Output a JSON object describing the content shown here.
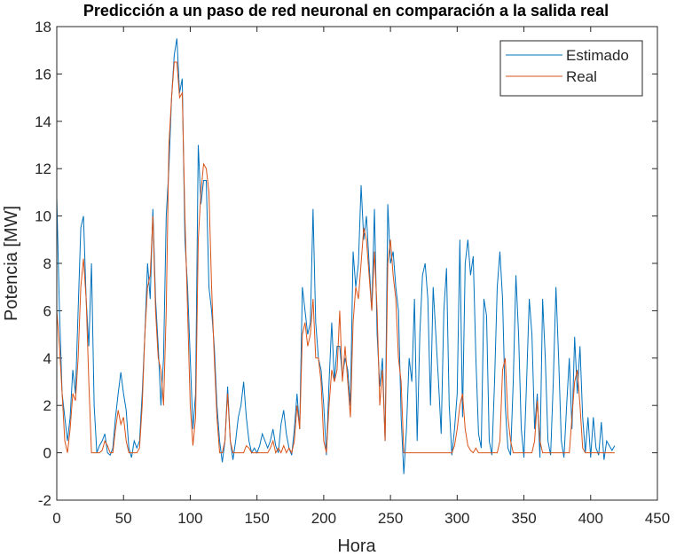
{
  "chart_data": {
    "type": "line",
    "title": "Predicción a un paso de red neuronal en comparación a la salida real",
    "xlabel": "Hora",
    "ylabel": "Potencia [MW]",
    "x": [
      0,
      2,
      4,
      6,
      8,
      10,
      12,
      14,
      16,
      18,
      20,
      22,
      24,
      26,
      28,
      30,
      32,
      34,
      36,
      38,
      40,
      42,
      44,
      46,
      48,
      50,
      52,
      54,
      56,
      58,
      60,
      62,
      64,
      66,
      68,
      70,
      72,
      74,
      76,
      78,
      80,
      82,
      84,
      86,
      88,
      90,
      92,
      94,
      96,
      98,
      100,
      102,
      104,
      106,
      108,
      110,
      112,
      114,
      116,
      118,
      120,
      122,
      124,
      126,
      128,
      130,
      132,
      134,
      136,
      138,
      140,
      142,
      144,
      146,
      148,
      150,
      152,
      154,
      156,
      158,
      160,
      162,
      164,
      166,
      168,
      170,
      172,
      174,
      176,
      178,
      180,
      182,
      184,
      186,
      188,
      190,
      192,
      194,
      196,
      198,
      200,
      202,
      204,
      206,
      208,
      210,
      212,
      214,
      216,
      218,
      220,
      222,
      224,
      226,
      228,
      230,
      232,
      234,
      236,
      238,
      240,
      242,
      244,
      246,
      248,
      250,
      252,
      254,
      256,
      258,
      260,
      262,
      264,
      266,
      268,
      270,
      272,
      274,
      276,
      278,
      280,
      282,
      284,
      286,
      288,
      290,
      292,
      294,
      296,
      298,
      300,
      302,
      304,
      306,
      308,
      310,
      312,
      314,
      316,
      318,
      320,
      322,
      324,
      326,
      328,
      330,
      332,
      334,
      336,
      338,
      340,
      342,
      344,
      346,
      348,
      350,
      352,
      354,
      356,
      358,
      360,
      362,
      364,
      366,
      368,
      370,
      372,
      374,
      376,
      378,
      380,
      382,
      384,
      386,
      388,
      390,
      392,
      394,
      396,
      398,
      400,
      402,
      404,
      406,
      408,
      410,
      412,
      414,
      416,
      418
    ],
    "series": [
      {
        "name": "Estimado",
        "color": "#0072bd",
        "values": [
          10.8,
          6,
          2.5,
          1.5,
          0.5,
          1.5,
          3.5,
          2.5,
          6,
          9.5,
          10,
          6.5,
          4.5,
          8,
          2,
          0,
          0.3,
          0.5,
          0.8,
          0,
          -0.1,
          0.2,
          1.5,
          2.5,
          3.4,
          2.5,
          1.8,
          0.2,
          -0.2,
          0.5,
          0.2,
          0.5,
          2.5,
          5,
          8,
          6.5,
          10.3,
          6.5,
          4.5,
          2,
          4,
          10,
          12,
          15,
          16.8,
          17.5,
          15.2,
          15.8,
          9,
          7,
          4,
          1,
          2.5,
          13,
          10.5,
          11.5,
          11.5,
          7,
          6,
          4.5,
          2,
          0.5,
          -0.4,
          0.5,
          2.8,
          0.5,
          -0.3,
          0.5,
          1.5,
          2,
          3,
          1.5,
          0.5,
          0,
          0.2,
          0,
          0.3,
          0.8,
          0.5,
          0.2,
          0.5,
          1,
          0.3,
          0,
          1.2,
          1.8,
          0.8,
          0.2,
          -0.1,
          1,
          2.5,
          1,
          7,
          6,
          5,
          5.5,
          10.3,
          5.5,
          4,
          3.5,
          2,
          -0.1,
          3,
          5.5,
          3,
          4.5,
          4.5,
          3.2,
          4,
          3.5,
          2,
          8.5,
          7,
          8,
          11.3,
          9,
          10,
          8,
          6,
          10.3,
          5,
          2.8,
          4,
          0.5,
          10.5,
          8,
          8.5,
          7,
          6,
          1.5,
          -0.9,
          1,
          4,
          3,
          6.5,
          0.5,
          5,
          7.5,
          8,
          6.5,
          2,
          7,
          5,
          3,
          0.8,
          6,
          7.8,
          2,
          -0.1,
          1,
          2.5,
          9,
          1.5,
          8,
          9,
          7.5,
          8.3,
          4,
          0.8,
          0.2,
          6.5,
          5.8,
          0.5,
          -0.1,
          3,
          7,
          8.5,
          6.5,
          2,
          0.2,
          -0.1,
          3,
          7.5,
          5,
          1,
          -0.2,
          3,
          6.5,
          5,
          1,
          2.5,
          -0.2,
          6.5,
          4,
          0.5,
          -0.1,
          3,
          7,
          4,
          0.5,
          -0.2,
          2,
          4,
          1,
          4.9,
          2.5,
          4.5,
          1.5,
          0,
          1.5,
          -0.2,
          1.5,
          0.2,
          -0.1,
          1.3,
          -0.3,
          0.5,
          0.3,
          0.1,
          0.3
        ]
      },
      {
        "name": "Real",
        "color": "#d95319",
        "values": [
          6,
          4.5,
          2.5,
          0.5,
          0,
          1,
          2.5,
          2.2,
          4,
          7,
          8.2,
          6.5,
          3,
          0,
          0,
          0,
          0,
          0.1,
          0.5,
          0.3,
          0,
          0,
          1,
          1.8,
          1.2,
          1.5,
          0.5,
          0,
          0,
          0,
          0,
          0.2,
          2,
          5,
          7,
          7.5,
          10,
          6,
          4,
          3.5,
          2,
          6,
          13,
          15,
          16.5,
          16.5,
          15,
          15.2,
          10,
          6,
          2,
          0.3,
          1.5,
          9,
          11,
          12.2,
          12,
          11,
          7,
          4,
          1.5,
          0,
          0,
          0.5,
          2.5,
          0.5,
          0,
          0,
          0,
          0,
          0,
          0.3,
          0.2,
          0,
          0,
          0,
          0,
          0,
          0,
          0,
          0.2,
          0.5,
          0,
          0.2,
          0,
          0.3,
          0,
          0.2,
          0,
          0.5,
          2,
          1,
          5,
          5.5,
          4.5,
          5,
          6.5,
          4,
          4,
          3,
          0.5,
          0,
          2,
          3.5,
          3,
          3.5,
          6,
          3,
          4.5,
          3,
          1.5,
          5.5,
          7,
          6.5,
          8,
          9.5,
          9,
          7.5,
          6,
          8.5,
          6,
          2,
          3.5,
          0.5,
          8,
          9,
          7.5,
          6.5,
          4,
          3,
          0,
          0,
          0,
          0,
          0,
          0,
          0,
          0,
          0,
          0,
          0,
          0,
          0,
          0,
          0,
          0,
          0,
          0,
          0,
          0.3,
          1,
          2,
          2.5,
          1,
          0.3,
          0.1,
          0,
          0.2,
          0,
          0,
          0,
          0,
          0,
          0,
          0,
          0,
          0.5,
          3.5,
          4,
          1.5,
          0.5,
          0,
          0,
          0,
          0,
          0,
          0,
          0,
          0,
          0.5,
          2.2,
          0.5,
          0,
          0,
          0,
          0,
          0,
          0,
          0,
          0,
          0,
          0,
          0,
          1.5,
          3,
          3.5,
          2,
          0.2,
          0,
          0,
          0,
          0,
          0,
          0,
          0,
          0,
          0,
          0,
          0,
          0
        ]
      }
    ],
    "xlim": [
      0,
      450
    ],
    "xticks": [
      0,
      50,
      100,
      150,
      200,
      250,
      300,
      350,
      400,
      450
    ],
    "ylim": [
      -2,
      18
    ],
    "yticks": [
      -2,
      0,
      2,
      4,
      6,
      8,
      10,
      12,
      14,
      16,
      18
    ],
    "legend": "upper right"
  }
}
